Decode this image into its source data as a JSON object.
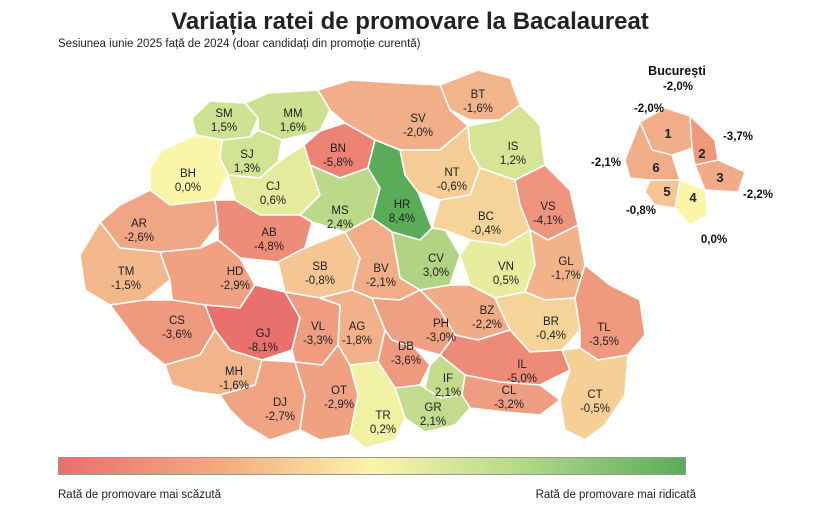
{
  "title": "Variația ratei de promovare la Bacalaureat",
  "subtitle": "Sesiunea iunie 2025 față de 2024 (doar candidați din promoție curentă)",
  "legend": {
    "low_label": "Rată de promovare mai scăzută",
    "high_label": "Rată de promovare mai ridicată"
  },
  "colors": {
    "min": "#e9706c",
    "mid": "#fbf5a8",
    "max": "#5aac58"
  },
  "counties": [
    {
      "code": "SM",
      "value": "1,5%",
      "num": 1.5
    },
    {
      "code": "MM",
      "value": "1,6%",
      "num": 1.6
    },
    {
      "code": "BT",
      "value": "-1,6%",
      "num": -1.6
    },
    {
      "code": "SV",
      "value": "-2,0%",
      "num": -2.0
    },
    {
      "code": "BN",
      "value": "-5,8%",
      "num": -5.8
    },
    {
      "code": "SJ",
      "value": "1,3%",
      "num": 1.3
    },
    {
      "code": "IS",
      "value": "1,2%",
      "num": 1.2
    },
    {
      "code": "BH",
      "value": "0,0%",
      "num": 0.0
    },
    {
      "code": "CJ",
      "value": "0,6%",
      "num": 0.6
    },
    {
      "code": "NT",
      "value": "-0,6%",
      "num": -0.6
    },
    {
      "code": "MS",
      "value": "2,4%",
      "num": 2.4
    },
    {
      "code": "HR",
      "value": "8,4%",
      "num": 8.4
    },
    {
      "code": "VS",
      "value": "-4,1%",
      "num": -4.1
    },
    {
      "code": "BC",
      "value": "-0,4%",
      "num": -0.4
    },
    {
      "code": "AR",
      "value": "-2,6%",
      "num": -2.6
    },
    {
      "code": "AB",
      "value": "-4,8%",
      "num": -4.8
    },
    {
      "code": "CV",
      "value": "3,0%",
      "num": 3.0
    },
    {
      "code": "VN",
      "value": "0,5%",
      "num": 0.5
    },
    {
      "code": "GL",
      "value": "-1,7%",
      "num": -1.7
    },
    {
      "code": "TM",
      "value": "-1,5%",
      "num": -1.5
    },
    {
      "code": "HD",
      "value": "-2,9%",
      "num": -2.9
    },
    {
      "code": "SB",
      "value": "-0,8%",
      "num": -0.8
    },
    {
      "code": "BV",
      "value": "-2,1%",
      "num": -2.1
    },
    {
      "code": "BZ",
      "value": "-2,2%",
      "num": -2.2
    },
    {
      "code": "CS",
      "value": "-3,6%",
      "num": -3.6
    },
    {
      "code": "GJ",
      "value": "-8,1%",
      "num": -8.1
    },
    {
      "code": "VL",
      "value": "-3,3%",
      "num": -3.3
    },
    {
      "code": "AG",
      "value": "-1,8%",
      "num": -1.8
    },
    {
      "code": "PH",
      "value": "-3,0%",
      "num": -3.0
    },
    {
      "code": "BR",
      "value": "-0,4%",
      "num": -0.4
    },
    {
      "code": "TL",
      "value": "-3,5%",
      "num": -3.5
    },
    {
      "code": "DB",
      "value": "-3,6%",
      "num": -3.6
    },
    {
      "code": "MH",
      "value": "-1,6%",
      "num": -1.6
    },
    {
      "code": "IL",
      "value": "-5,0%",
      "num": -5.0
    },
    {
      "code": "IF",
      "value": "2,1%",
      "num": 2.1
    },
    {
      "code": "DJ",
      "value": "-2,7%",
      "num": -2.7
    },
    {
      "code": "OT",
      "value": "-2,9%",
      "num": -2.9
    },
    {
      "code": "CL",
      "value": "-3,2%",
      "num": -3.2
    },
    {
      "code": "GR",
      "value": "2,1%",
      "num": 2.1
    },
    {
      "code": "TR",
      "value": "0,2%",
      "num": 0.2
    },
    {
      "code": "CT",
      "value": "-0,5%",
      "num": -0.5
    }
  ],
  "bucharest": {
    "title": "București",
    "total": "-2,0%",
    "sectors": [
      {
        "num": "1",
        "value": "-2,0%",
        "v": -2.0
      },
      {
        "num": "2",
        "value": "-3,7%",
        "v": -3.7
      },
      {
        "num": "3",
        "value": "-2,2%",
        "v": -2.2
      },
      {
        "num": "4",
        "value": "0,0%",
        "v": 0.0
      },
      {
        "num": "5",
        "value": "-0,8%",
        "v": -0.8
      },
      {
        "num": "6",
        "value": "-2,1%",
        "v": -2.1
      }
    ]
  }
}
